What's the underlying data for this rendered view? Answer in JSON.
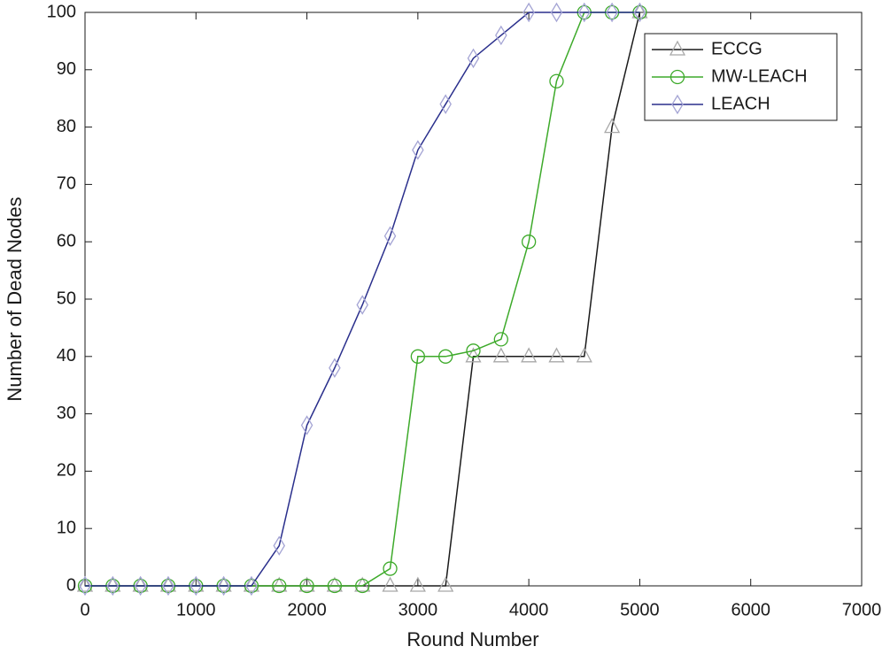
{
  "chart_data": {
    "type": "line",
    "xlabel": "Round Number",
    "ylabel": "Number of Dead Nodes",
    "x": [
      0,
      250,
      500,
      750,
      1000,
      1250,
      1500,
      1750,
      2000,
      2250,
      2500,
      2750,
      3000,
      3250,
      3500,
      3750,
      4000,
      4250,
      4500,
      4750,
      5000
    ],
    "series": [
      {
        "name": "ECCG",
        "color": "#1a1a1a",
        "marker": "triangle",
        "marker_color": "#a8a8a8",
        "values": [
          0,
          0,
          0,
          0,
          0,
          0,
          0,
          0,
          0,
          0,
          0,
          0,
          0,
          0,
          40,
          40,
          40,
          40,
          40,
          80,
          100
        ]
      },
      {
        "name": "MW-LEACH",
        "color": "#3daa2a",
        "marker": "circle",
        "marker_color": "#3daa2a",
        "values": [
          0,
          0,
          0,
          0,
          0,
          0,
          0,
          0,
          0,
          0,
          0,
          3,
          40,
          40,
          41,
          43,
          60,
          88,
          100,
          100,
          100
        ]
      },
      {
        "name": "LEACH",
        "color": "#2a2f8c",
        "marker": "diamond",
        "marker_color": "#a4a4d4",
        "values": [
          0,
          0,
          0,
          0,
          0,
          0,
          0,
          7,
          28,
          38,
          49,
          61,
          76,
          84,
          92,
          96,
          100,
          100,
          100,
          100,
          100
        ]
      }
    ],
    "xlim": [
      0,
      7000
    ],
    "xticks": [
      0,
      1000,
      2000,
      3000,
      4000,
      5000,
      6000,
      7000
    ],
    "ylim": [
      0,
      100
    ],
    "yticks": [
      0,
      10,
      20,
      30,
      40,
      50,
      60,
      70,
      80,
      90,
      100
    ],
    "legend": "upper right",
    "grid": false
  }
}
